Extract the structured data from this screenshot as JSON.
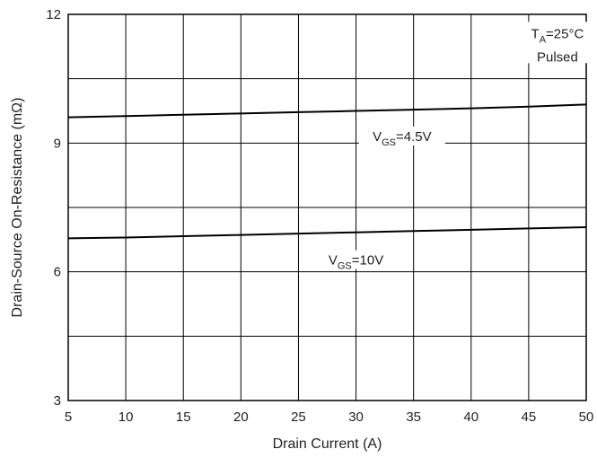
{
  "chart_data": {
    "type": "line",
    "title": "",
    "xlabel": "Drain Current (A)",
    "ylabel": "Drain-Source On-Resistance (mΩ)",
    "xlim": [
      5,
      50
    ],
    "ylim": [
      3,
      12
    ],
    "x_ticks": [
      5,
      10,
      15,
      20,
      25,
      30,
      35,
      40,
      45,
      50
    ],
    "y_ticks": [
      3,
      6,
      9,
      12
    ],
    "y_minor_gridlines": [
      4.5,
      7.5,
      10.5
    ],
    "grid": true,
    "legend": "none",
    "series": [
      {
        "label_main": "V",
        "label_sub": "GS",
        "label_rest": "=4.5V",
        "x": [
          5,
          10,
          15,
          20,
          25,
          30,
          35,
          40,
          45,
          50
        ],
        "y": [
          9.6,
          9.63,
          9.66,
          9.69,
          9.72,
          9.75,
          9.78,
          9.81,
          9.85,
          9.9
        ],
        "color": "#000000"
      },
      {
        "label_main": "V",
        "label_sub": "GS",
        "label_rest": "=10V",
        "x": [
          5,
          10,
          15,
          20,
          25,
          30,
          35,
          40,
          45,
          50
        ],
        "y": [
          6.78,
          6.8,
          6.83,
          6.86,
          6.89,
          6.92,
          6.95,
          6.98,
          7.01,
          7.04
        ],
        "color": "#000000"
      }
    ],
    "annotation": {
      "line1_main": "T",
      "line1_sub": "A",
      "line1_rest": "=25°C",
      "line2": "Pulsed"
    }
  }
}
